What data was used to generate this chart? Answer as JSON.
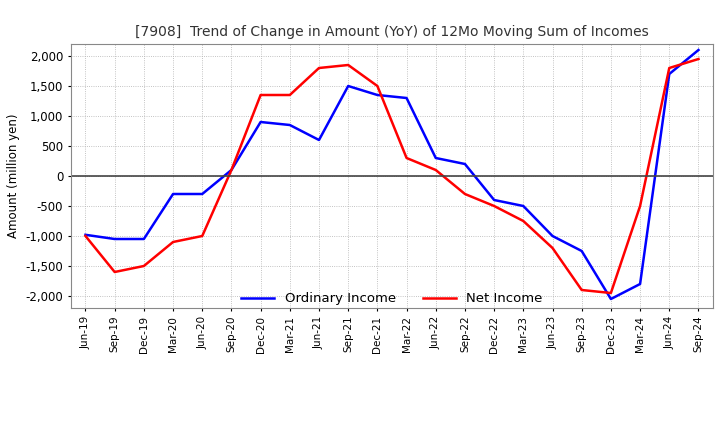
{
  "title": "[7908]  Trend of Change in Amount (YoY) of 12Mo Moving Sum of Incomes",
  "ylabel": "Amount (million yen)",
  "x_labels": [
    "Jun-19",
    "Sep-19",
    "Dec-19",
    "Mar-20",
    "Jun-20",
    "Sep-20",
    "Dec-20",
    "Mar-21",
    "Jun-21",
    "Sep-21",
    "Dec-21",
    "Mar-22",
    "Jun-22",
    "Sep-22",
    "Dec-22",
    "Mar-23",
    "Jun-23",
    "Sep-23",
    "Dec-23",
    "Mar-24",
    "Jun-24",
    "Sep-24"
  ],
  "ordinary_income": [
    -980,
    -1050,
    -1050,
    -300,
    -300,
    100,
    900,
    850,
    600,
    1500,
    1350,
    1300,
    300,
    200,
    -400,
    -500,
    -1000,
    -1250,
    -2050,
    -1800,
    1700,
    2100
  ],
  "net_income": [
    -1000,
    -1600,
    -1500,
    -1100,
    -1000,
    100,
    1350,
    1350,
    1800,
    1850,
    1500,
    300,
    100,
    -300,
    -500,
    -750,
    -1200,
    -1900,
    -1950,
    -500,
    1800,
    1950
  ],
  "ordinary_color": "#0000ff",
  "net_color": "#ff0000",
  "background_color": "#ffffff",
  "grid_color": "#b0b0b0",
  "ylim": [
    -2200,
    2200
  ],
  "yticks": [
    -2000,
    -1500,
    -1000,
    -500,
    0,
    500,
    1000,
    1500,
    2000
  ]
}
